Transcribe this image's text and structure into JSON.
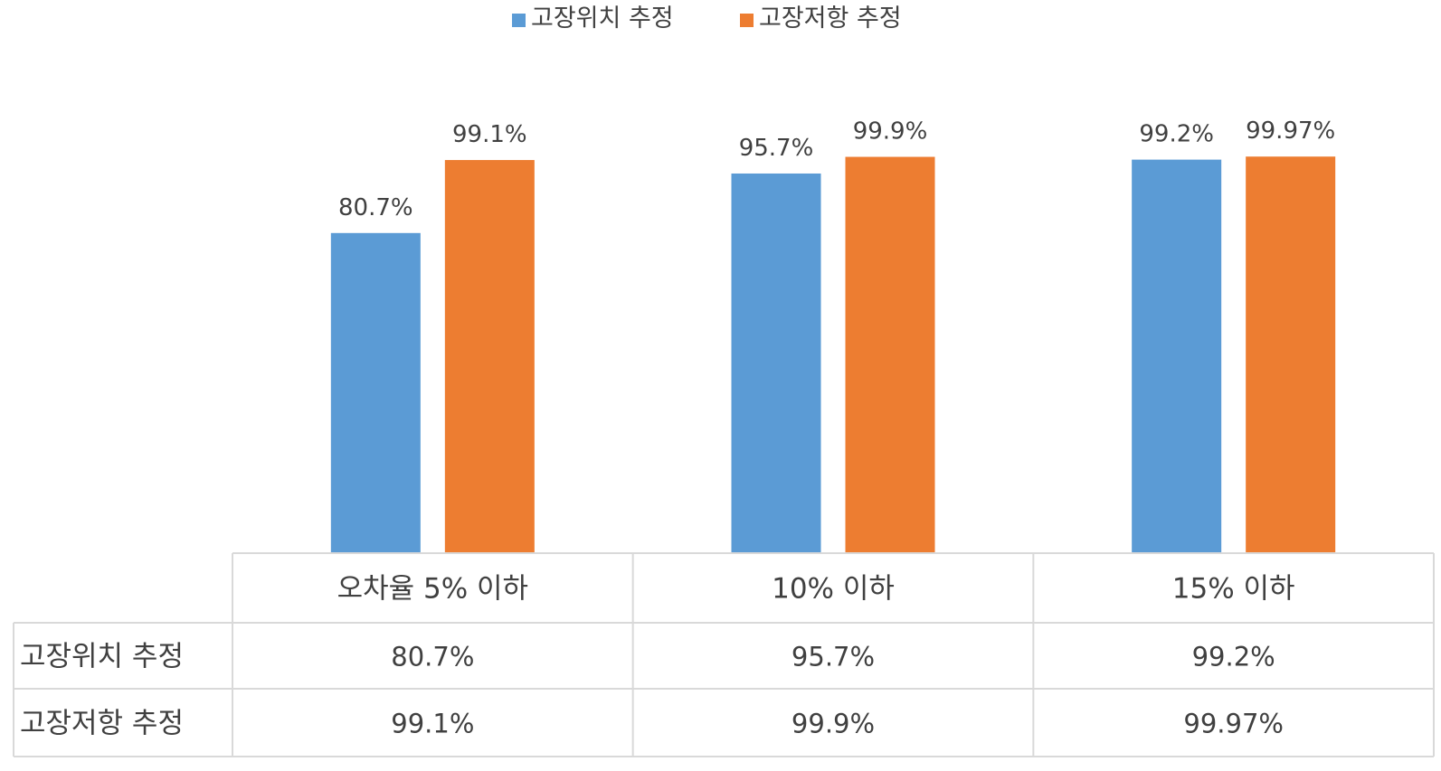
{
  "chart_data": {
    "type": "bar",
    "categories": [
      "오차율 5% 이하",
      "10% 이하",
      "15% 이하"
    ],
    "series": [
      {
        "name": "고장위치 추정",
        "values": [
          80.7,
          95.7,
          99.2
        ],
        "labels": [
          "80.7%",
          "95.7%",
          "99.2%"
        ],
        "color": "#5B9BD5"
      },
      {
        "name": "고장저항 추정",
        "values": [
          99.1,
          99.9,
          99.97
        ],
        "labels": [
          "99.1%",
          "99.9%",
          "99.97%"
        ],
        "color": "#ED7D31"
      }
    ],
    "ylim": [
      0,
      100
    ],
    "grid": false,
    "legend_position": "top-center",
    "data_table": true,
    "title": "",
    "xlabel": "",
    "ylabel": ""
  }
}
